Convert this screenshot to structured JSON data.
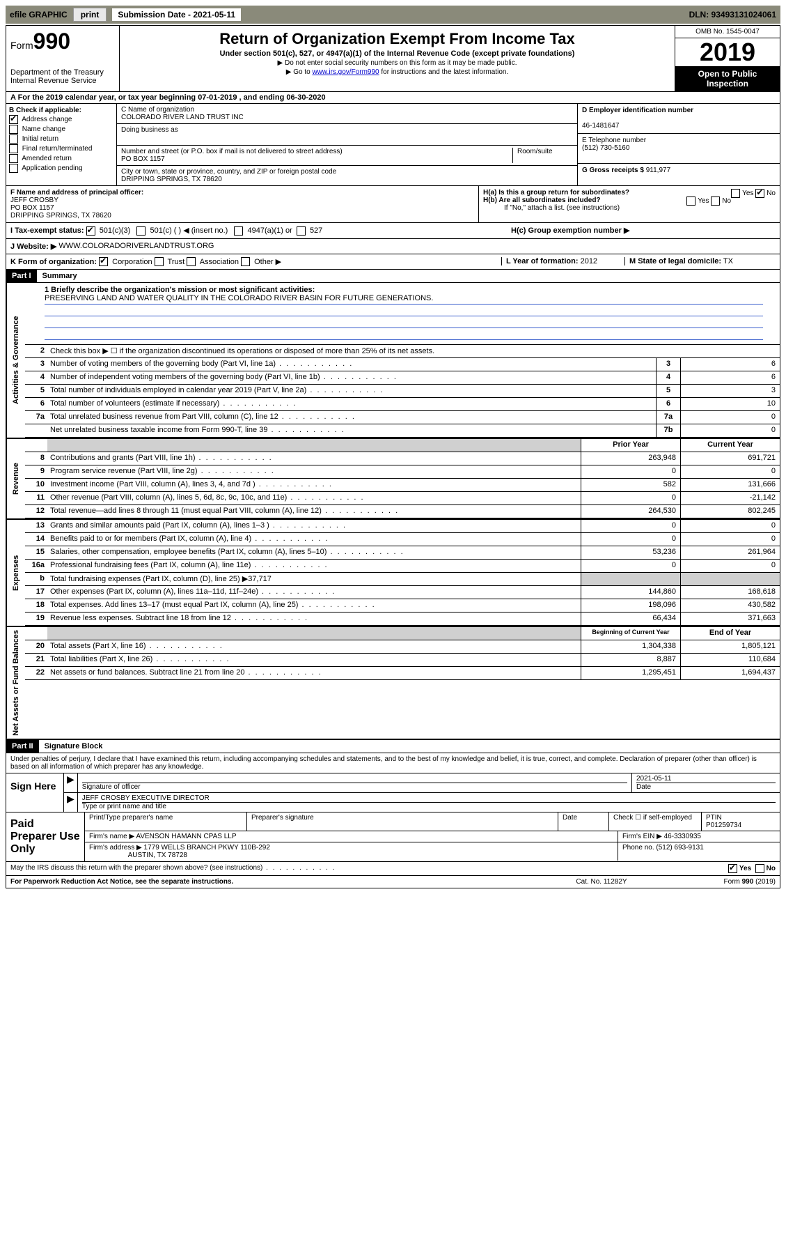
{
  "top_bar": {
    "efile_label": "efile GRAPHIC",
    "print_btn": "print",
    "sub_date_label": "Submission Date - 2021-05-11",
    "dln": "DLN: 93493131024061"
  },
  "header": {
    "form_word": "Form",
    "form_num": "990",
    "dept": "Department of the Treasury\nInternal Revenue Service",
    "title": "Return of Organization Exempt From Income Tax",
    "subtitle": "Under section 501(c), 527, or 4947(a)(1) of the Internal Revenue Code (except private foundations)",
    "note1": "▶ Do not enter social security numbers on this form as it may be made public.",
    "note2_pre": "▶ Go to ",
    "note2_link": "www.irs.gov/Form990",
    "note2_post": " for instructions and the latest information.",
    "omb": "OMB No. 1545-0047",
    "year": "2019",
    "inspection": "Open to Public Inspection"
  },
  "period": {
    "line": "A For the 2019 calendar year, or tax year beginning 07-01-2019    , and ending 06-30-2020"
  },
  "colB": {
    "label": "B Check if applicable:",
    "opts": [
      "Address change",
      "Name change",
      "Initial return",
      "Final return/terminated",
      "Amended return",
      "Application pending"
    ],
    "checked_idx": 0
  },
  "colC": {
    "name_label": "C Name of organization",
    "org_name": "COLORADO RIVER LAND TRUST INC",
    "dba_label": "Doing business as",
    "addr_label": "Number and street (or P.O. box if mail is not delivered to street address)",
    "addr": "PO BOX 1157",
    "room_label": "Room/suite",
    "city_label": "City or town, state or province, country, and ZIP or foreign postal code",
    "city": "DRIPPING SPRINGS, TX  78620"
  },
  "colD": {
    "ein_label": "D Employer identification number",
    "ein": "46-1481647",
    "phone_label": "E Telephone number",
    "phone": "(512) 730-5160",
    "gross_label": "G Gross receipts $",
    "gross": "911,977"
  },
  "rowF": {
    "f_label": "F  Name and address of principal officer:",
    "f_name": "JEFF CROSBY",
    "f_addr1": "PO BOX 1157",
    "f_addr2": "DRIPPING SPRINGS, TX  78620",
    "ha": "H(a)  Is this a group return for subordinates?",
    "hb": "H(b)  Are all subordinates included?",
    "hb_note": "If \"No,\" attach a list. (see instructions)",
    "yes": "Yes",
    "no": "No"
  },
  "status": {
    "label_i": "I  Tax-exempt status:",
    "opt1": "501(c)(3)",
    "opt2": "501(c) (   ) ◀ (insert no.)",
    "opt3": "4947(a)(1) or",
    "opt4": "527",
    "hc": "H(c)  Group exemption number ▶"
  },
  "website": {
    "label": "J  Website: ▶",
    "val": "WWW.COLORADORIVERLANDTRUST.ORG"
  },
  "korg": {
    "k_label": "K Form of organization:",
    "opts": [
      "Corporation",
      "Trust",
      "Association",
      "Other ▶"
    ],
    "l_label": "L Year of formation:",
    "l_val": "2012",
    "m_label": "M State of legal domicile:",
    "m_val": "TX"
  },
  "partI": {
    "part": "Part I",
    "title": "Summary",
    "vtabs": [
      "Activities & Governance",
      "Revenue",
      "Expenses",
      "Net Assets or Fund Balances"
    ],
    "line1_label": "1  Briefly describe the organization's mission or most significant activities:",
    "mission": "PRESERVING LAND AND WATER QUALITY IN THE COLORADO RIVER BASIN FOR FUTURE GENERATIONS.",
    "line2": "Check this box ▶ ☐  if the organization discontinued its operations or disposed of more than 25% of its net assets.",
    "gov_lines": [
      {
        "n": "3",
        "desc": "Number of voting members of the governing body (Part VI, line 1a)",
        "box": "3",
        "val": "6"
      },
      {
        "n": "4",
        "desc": "Number of independent voting members of the governing body (Part VI, line 1b)",
        "box": "4",
        "val": "6"
      },
      {
        "n": "5",
        "desc": "Total number of individuals employed in calendar year 2019 (Part V, line 2a)",
        "box": "5",
        "val": "3"
      },
      {
        "n": "6",
        "desc": "Total number of volunteers (estimate if necessary)",
        "box": "6",
        "val": "10"
      },
      {
        "n": "7a",
        "desc": "Total unrelated business revenue from Part VIII, column (C), line 12",
        "box": "7a",
        "val": "0"
      },
      {
        "n": "",
        "desc": "Net unrelated business taxable income from Form 990-T, line 39",
        "box": "7b",
        "val": "0"
      }
    ],
    "col_hdr_prior": "Prior Year",
    "col_hdr_curr": "Current Year",
    "rev_lines": [
      {
        "n": "8",
        "desc": "Contributions and grants (Part VIII, line 1h)",
        "prior": "263,948",
        "curr": "691,721"
      },
      {
        "n": "9",
        "desc": "Program service revenue (Part VIII, line 2g)",
        "prior": "0",
        "curr": "0"
      },
      {
        "n": "10",
        "desc": "Investment income (Part VIII, column (A), lines 3, 4, and 7d )",
        "prior": "582",
        "curr": "131,666"
      },
      {
        "n": "11",
        "desc": "Other revenue (Part VIII, column (A), lines 5, 6d, 8c, 9c, 10c, and 11e)",
        "prior": "0",
        "curr": "-21,142"
      },
      {
        "n": "12",
        "desc": "Total revenue—add lines 8 through 11 (must equal Part VIII, column (A), line 12)",
        "prior": "264,530",
        "curr": "802,245"
      }
    ],
    "exp_lines": [
      {
        "n": "13",
        "desc": "Grants and similar amounts paid (Part IX, column (A), lines 1–3 )",
        "prior": "0",
        "curr": "0"
      },
      {
        "n": "14",
        "desc": "Benefits paid to or for members (Part IX, column (A), line 4)",
        "prior": "0",
        "curr": "0"
      },
      {
        "n": "15",
        "desc": "Salaries, other compensation, employee benefits (Part IX, column (A), lines 5–10)",
        "prior": "53,236",
        "curr": "261,964"
      },
      {
        "n": "16a",
        "desc": "Professional fundraising fees (Part IX, column (A), line 11e)",
        "prior": "0",
        "curr": "0"
      },
      {
        "n": "b",
        "desc": "Total fundraising expenses (Part IX, column (D), line 25) ▶37,717",
        "prior": "",
        "curr": "",
        "gray": true
      },
      {
        "n": "17",
        "desc": "Other expenses (Part IX, column (A), lines 11a–11d, 11f–24e)",
        "prior": "144,860",
        "curr": "168,618"
      },
      {
        "n": "18",
        "desc": "Total expenses. Add lines 13–17 (must equal Part IX, column (A), line 25)",
        "prior": "198,096",
        "curr": "430,582"
      },
      {
        "n": "19",
        "desc": "Revenue less expenses. Subtract line 18 from line 12",
        "prior": "66,434",
        "curr": "371,663"
      }
    ],
    "na_hdr_prior": "Beginning of Current Year",
    "na_hdr_curr": "End of Year",
    "na_lines": [
      {
        "n": "20",
        "desc": "Total assets (Part X, line 16)",
        "prior": "1,304,338",
        "curr": "1,805,121"
      },
      {
        "n": "21",
        "desc": "Total liabilities (Part X, line 26)",
        "prior": "8,887",
        "curr": "110,684"
      },
      {
        "n": "22",
        "desc": "Net assets or fund balances. Subtract line 21 from line 20",
        "prior": "1,295,451",
        "curr": "1,694,437"
      }
    ]
  },
  "partII": {
    "part": "Part II",
    "title": "Signature Block",
    "intro": "Under penalties of perjury, I declare that I have examined this return, including accompanying schedules and statements, and to the best of my knowledge and belief, it is true, correct, and complete. Declaration of preparer (other than officer) is based on all information of which preparer has any knowledge.",
    "sign_here": "Sign Here",
    "sig_officer": "Signature of officer",
    "sig_date": "2021-05-11",
    "date_label": "Date",
    "officer_name": "JEFF CROSBY EXECUTIVE DIRECTOR",
    "type_name": "Type or print name and title",
    "paid": "Paid Preparer Use Only",
    "prep_name_label": "Print/Type preparer's name",
    "prep_sig_label": "Preparer's signature",
    "prep_date_label": "Date",
    "check_self": "Check ☐ if self-employed",
    "ptin_label": "PTIN",
    "ptin": "P01259734",
    "firm_name_label": "Firm's name    ▶",
    "firm_name": "AVENSON HAMANN CPAS LLP",
    "firm_ein_label": "Firm's EIN ▶",
    "firm_ein": "46-3330935",
    "firm_addr_label": "Firm's address ▶",
    "firm_addr": "1779 WELLS BRANCH PKWY 110B-292",
    "firm_city": "AUSTIN, TX  78728",
    "phone_label": "Phone no.",
    "phone": "(512) 693-9131",
    "discuss": "May the IRS discuss this return with the preparer shown above? (see instructions)",
    "yes": "Yes",
    "no": "No"
  },
  "footer": {
    "left": "For Paperwork Reduction Act Notice, see the separate instructions.",
    "mid": "Cat. No. 11282Y",
    "right": "Form 990 (2019)"
  }
}
